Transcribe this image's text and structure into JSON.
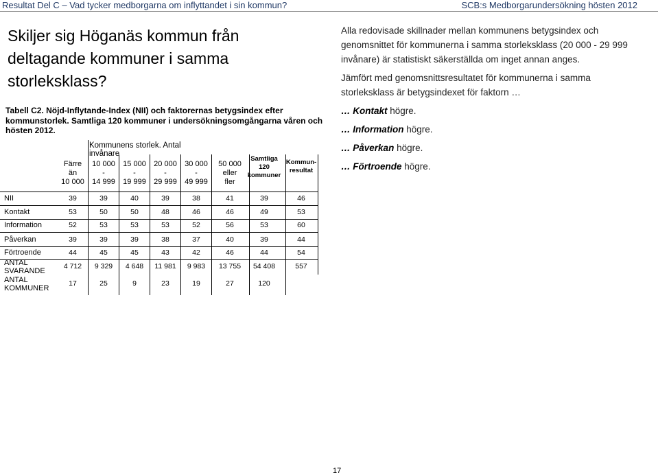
{
  "header": {
    "left": "Resultat Del C – Vad tycker medborgarna om inflyttandet i sin kommun?",
    "right": "SCB:s Medborgarundersökning hösten 2012"
  },
  "title": "Skiljer sig Höganäs kommun från deltagande kommuner i samma storleksklass?",
  "caption": "Tabell C2. Nöjd-Inflytande-Index (NII) och faktorernas betygsindex efter kommunstorlek. Samtliga 120 kommuner i undersökningsomgångarna våren och hösten 2012.",
  "table": {
    "group_header": "Kommunens storlek. Antal invånare",
    "columns": [
      [
        "Färre",
        "än",
        "10 000"
      ],
      [
        "10 000",
        "-",
        "14 999"
      ],
      [
        "15 000",
        "-",
        "19 999"
      ],
      [
        "20 000",
        "-",
        "29 999"
      ],
      [
        "30 000",
        "-",
        "49 999"
      ],
      [
        "50 000",
        "eller",
        "fler"
      ],
      [
        "Samtliga",
        "120",
        "kommuner"
      ],
      [
        "Kommun-",
        "resultat"
      ]
    ],
    "rows": [
      {
        "label": "NII",
        "values": [
          "39",
          "39",
          "40",
          "39",
          "38",
          "41",
          "39",
          "46"
        ]
      },
      {
        "label": "Kontakt",
        "values": [
          "53",
          "50",
          "50",
          "48",
          "46",
          "46",
          "49",
          "53"
        ]
      },
      {
        "label": "Information",
        "values": [
          "52",
          "53",
          "53",
          "53",
          "52",
          "56",
          "53",
          "60"
        ]
      },
      {
        "label": "Påverkan",
        "values": [
          "39",
          "39",
          "39",
          "38",
          "37",
          "40",
          "39",
          "44"
        ]
      },
      {
        "label": "Förtroende",
        "values": [
          "44",
          "45",
          "45",
          "43",
          "42",
          "46",
          "44",
          "54"
        ]
      },
      {
        "label": "ANTAL SVARANDE",
        "values": [
          "4 712",
          "9 329",
          "4 648",
          "11 981",
          "9 983",
          "13 755",
          "54 408",
          "557"
        ]
      },
      {
        "label": "ANTAL KOMMUNER",
        "values": [
          "17",
          "25",
          "9",
          "23",
          "19",
          "27",
          "120",
          ""
        ]
      }
    ]
  },
  "right": {
    "p1": "Alla redovisade skillnader mellan kommunens betygsindex och genomsnittet för kommunerna i samma storleksklass (20 000 - 29 999 invånare) är statistiskt säkerställda om inget annan anges.",
    "p2": "Jämfört med genomsnittsresultatet för kommunerna i samma storleksklass är betygsindexet för faktorn …",
    "items": [
      {
        "lead": "… ",
        "name": "Kontakt",
        "tail": " högre."
      },
      {
        "lead": "… ",
        "name": "Information",
        "tail": " högre."
      },
      {
        "lead": "… ",
        "name": "Påverkan",
        "tail": " högre."
      },
      {
        "lead": "… ",
        "name": "Förtroende",
        "tail": " högre."
      }
    ]
  },
  "page_number": "17"
}
